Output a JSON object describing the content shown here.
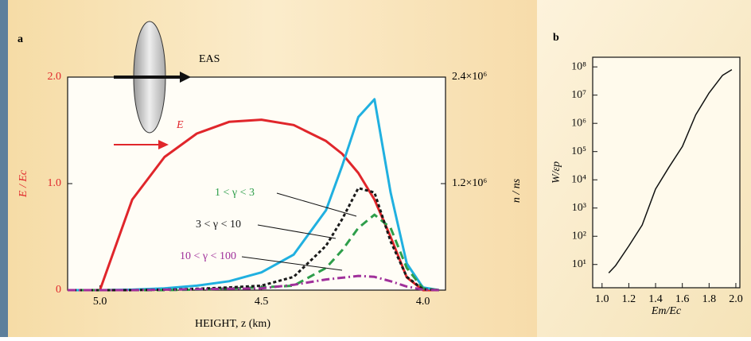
{
  "chart_data": [
    {
      "type": "line",
      "panel_label": "a",
      "x_label": "HEIGHT, z (km)",
      "y_label": "E / Ec",
      "y2_label": "n / ns",
      "annotations": [
        "EAS",
        "E"
      ],
      "x": [
        5.1,
        5.0,
        4.9,
        4.8,
        4.7,
        4.6,
        4.5,
        4.4,
        4.3,
        4.25,
        4.2,
        4.15,
        4.1,
        4.05,
        4.0,
        3.95
      ],
      "xlim": [
        5.1,
        3.93
      ],
      "xticks": [
        {
          "value": 5,
          "label": "5.0"
        },
        {
          "value": 4.5,
          "label": "4.5"
        },
        {
          "value": 4,
          "label": "4.0"
        }
      ],
      "ylim": [
        0,
        2.0
      ],
      "yticks": [
        0,
        {
          "value": 1,
          "label": "1.0"
        },
        {
          "value": 2,
          "label": "2.0"
        }
      ],
      "y2lim": [
        0,
        2400000
      ],
      "y2ticks": [
        {
          "value": 1200000,
          "label": "1.2×10⁶"
        },
        {
          "value": 2400000,
          "label": "2.4×10⁶"
        }
      ],
      "series": [
        {
          "name": "E",
          "color": "#e0262b",
          "line_style": "solid",
          "values": [
            null,
            0,
            0.85,
            1.25,
            1.47,
            1.58,
            1.6,
            1.55,
            1.4,
            1.28,
            1.1,
            0.85,
            0.5,
            0.12,
            0,
            0
          ]
        },
        {
          "color": "#20b0e0",
          "axis": "y2",
          "line_style": "solid",
          "values": [
            0,
            0,
            5000,
            20000,
            50000,
            100000,
            200000,
            400000,
            900000,
            1400000,
            1950000,
            2150000,
            1100000,
            300000,
            30000,
            0
          ]
        },
        {
          "name": "1 < γ < 3",
          "color": "#2e9e4a",
          "axis": "y2",
          "line_style": "dashed",
          "values": [
            0,
            0,
            0,
            0,
            5000,
            20000,
            30000,
            50000,
            250000,
            450000,
            700000,
            850000,
            700000,
            250000,
            20000,
            0
          ]
        },
        {
          "name": "3 < γ < 10",
          "color": "#1a1a1a",
          "axis": "y2",
          "line_style": "dotted",
          "values": [
            0,
            0,
            0,
            5000,
            15000,
            30000,
            50000,
            150000,
            500000,
            800000,
            1150000,
            1100000,
            550000,
            150000,
            10000,
            0
          ]
        },
        {
          "name": "10 < γ < 100",
          "color": "#a0309a",
          "axis": "y2",
          "line_style": "dashdot",
          "values": [
            0,
            0,
            0,
            5000,
            10000,
            15000,
            20000,
            60000,
            120000,
            140000,
            160000,
            150000,
            100000,
            40000,
            5000,
            0
          ]
        }
      ]
    },
    {
      "type": "line",
      "panel_label": "b",
      "x_label": "Em/Ec",
      "y_label": "W/εp",
      "log_y": true,
      "x": [
        1.05,
        1.1,
        1.2,
        1.3,
        1.4,
        1.5,
        1.6,
        1.7,
        1.8,
        1.9,
        1.97
      ],
      "xlim": [
        0.93,
        2.03
      ],
      "xticks": [
        {
          "value": 1,
          "label": "1.0"
        },
        {
          "value": 1.2,
          "label": "1.2"
        },
        {
          "value": 1.4,
          "label": "1.4"
        },
        {
          "value": 1.6,
          "label": "1.6"
        },
        {
          "value": 1.8,
          "label": "1.8"
        },
        {
          "value": 2,
          "label": "2.0"
        }
      ],
      "ylim": [
        1.5,
        220000000
      ],
      "yticks": [
        {
          "value": 10,
          "label": "10¹"
        },
        {
          "value": 100,
          "label": "10²"
        },
        {
          "value": 1000,
          "label": "10³"
        },
        {
          "value": 10000,
          "label": "10⁴"
        },
        {
          "value": 100000,
          "label": "10⁵"
        },
        {
          "value": 1000000,
          "label": "10⁶"
        },
        {
          "value": 10000000,
          "label": "10⁷"
        },
        {
          "value": 100000000,
          "label": "10⁸"
        }
      ],
      "series": [
        {
          "color": "#111111",
          "line_style": "solid",
          "values": [
            5,
            9,
            45,
            250,
            4700,
            28000,
            150000,
            2000000,
            12000000,
            50000000,
            80000000
          ]
        }
      ]
    }
  ]
}
